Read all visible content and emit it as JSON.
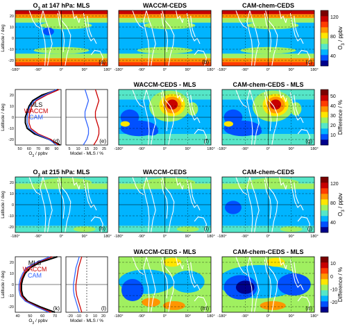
{
  "chart_data": {
    "type": "heatmap",
    "lon_ticks": [
      "-180°",
      "-90°",
      "0°",
      "90°",
      "180°"
    ],
    "lat_ticks": [
      "20",
      "10",
      "0",
      "-10",
      "-20"
    ],
    "lat_label": "Latitude / deg",
    "profile_legend": [
      "MLS",
      "WACCM",
      "CAM"
    ],
    "colors": {
      "MLS": "#000000",
      "WACCM": "#cc0000",
      "CAM": "#3366ff"
    },
    "levels": [
      {
        "titles": [
          "O3 at 147 hPa: MLS",
          "WACCM-CEDS",
          "CAM-chem-CEDS",
          "WACCM-CEDS - MLS",
          "CAM-chem-CEDS - MLS"
        ],
        "colorbars": [
          {
            "label": "O3 / ppbv",
            "ticks": [
              "120",
              "80",
              "40"
            ],
            "colors": [
              "#00008b",
              "#0050ff",
              "#00b4ff",
              "#55e6c8",
              "#a0f060",
              "#ffe600",
              "#ff9600",
              "#ff3c00",
              "#c80000",
              "#7a0000"
            ]
          },
          {
            "label": "Difference / %",
            "ticks": [
              "50",
              "40",
              "30",
              "20",
              "10"
            ],
            "colors": [
              "#00008b",
              "#0050ff",
              "#00b4ff",
              "#55e6c8",
              "#a0f060",
              "#ffe600",
              "#ff9600",
              "#ff3c00",
              "#c80000",
              "#7a0000"
            ]
          }
        ],
        "profile": {
          "xticks": [
            "50",
            "60",
            "70",
            "80",
            "90"
          ],
          "xlabel": "O3 / ppbv",
          "xlim": [
            45,
            95
          ],
          "lat": [
            -25,
            -20,
            -15,
            -10,
            -5,
            0,
            5,
            10,
            15,
            20,
            25
          ],
          "MLS": [
            94,
            82,
            66,
            58,
            56,
            56,
            58,
            60,
            64,
            74,
            92
          ],
          "WACCM": [
            92,
            84,
            70,
            62,
            60,
            60,
            61,
            63,
            68,
            79,
            93
          ],
          "CAM": [
            90,
            82,
            68,
            60,
            58,
            58,
            59,
            61,
            66,
            77,
            90
          ]
        },
        "bias": {
          "xticks": [
            "5",
            "10",
            "15",
            "20",
            "25"
          ],
          "xlabel": "Model - MLS / %",
          "xlim": [
            3,
            27
          ],
          "zero": false,
          "lat": [
            -25,
            -20,
            -15,
            -10,
            -5,
            0,
            5,
            10,
            15,
            20,
            25
          ],
          "WACCM": [
            19,
            21,
            22,
            22,
            21,
            20,
            20,
            21,
            22,
            21,
            20
          ],
          "CAM": [
            13,
            15,
            16,
            16,
            15,
            14,
            14,
            15,
            16,
            15,
            14
          ]
        },
        "panel_labels": [
          "(a)",
          "(b)",
          "(c)",
          "(d)",
          "(e)",
          "(f)",
          "(g)"
        ]
      },
      {
        "titles": [
          "O3 at 215 hPa: MLS",
          "WACCM-CEDS",
          "CAM-chem-CEDS",
          "WACCM-CEDS - MLS",
          "CAM-chem-CEDS - MLS"
        ],
        "colorbars": [
          {
            "label": "O3 / ppbv",
            "ticks": [
              "120",
              "80",
              "40"
            ],
            "colors": [
              "#00008b",
              "#0050ff",
              "#00b4ff",
              "#55e6c8",
              "#a0f060",
              "#ffe600",
              "#ff9600",
              "#ff3c00",
              "#c80000",
              "#7a0000"
            ]
          },
          {
            "label": "Difference / %",
            "ticks": [
              "10",
              "0",
              "-10",
              "-20"
            ],
            "colors": [
              "#00008b",
              "#0050ff",
              "#00b4ff",
              "#55e6c8",
              "#a0f060",
              "#ffe600",
              "#ff9600",
              "#ff3c00",
              "#c80000",
              "#7a0000"
            ]
          }
        ],
        "profile": {
          "xticks": [
            "40",
            "50",
            "60",
            "70"
          ],
          "xlabel": "O3 / ppbv",
          "xlim": [
            38,
            75
          ],
          "lat": [
            -25,
            -20,
            -15,
            -10,
            -5,
            0,
            5,
            10,
            15,
            20,
            25
          ],
          "MLS": [
            70,
            58,
            48,
            44,
            43,
            43,
            44,
            46,
            50,
            58,
            72
          ],
          "WACCM": [
            67,
            56,
            47,
            43,
            42,
            42,
            43,
            45,
            48,
            56,
            68
          ],
          "CAM": [
            65,
            55,
            46,
            42,
            41,
            41,
            42,
            44,
            47,
            55,
            66
          ]
        },
        "bias": {
          "xticks": [
            "-20",
            "-10",
            "0",
            "10",
            "20"
          ],
          "xlabel": "Model - MLS / %",
          "xlim": [
            -25,
            25
          ],
          "zero": true,
          "lat": [
            -25,
            -20,
            -15,
            -10,
            -5,
            0,
            5,
            10,
            15,
            20,
            25
          ],
          "WACCM": [
            -6,
            -8,
            -10,
            -12,
            -13,
            -13,
            -12,
            -11,
            -10,
            -8,
            -6
          ],
          "CAM": [
            -9,
            -11,
            -13,
            -15,
            -16,
            -16,
            -15,
            -14,
            -13,
            -11,
            -9
          ]
        },
        "panel_labels": [
          "(h)",
          "(i)",
          "(j)",
          "(k)",
          "(l)",
          "(m)",
          "(n)"
        ]
      }
    ]
  }
}
